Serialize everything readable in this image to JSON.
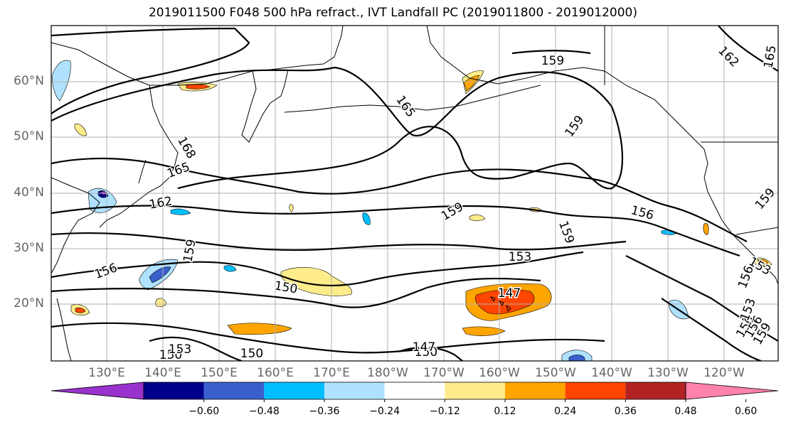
{
  "title": "2019011500 F048 500 hPa refract., IVT Landfall PC (2019011800 - 2019012000)",
  "axes": {
    "lat_labels": [
      "60°N",
      "50°N",
      "40°N",
      "30°N",
      "20°N"
    ],
    "lon_labels": [
      "130°E",
      "140°E",
      "150°E",
      "160°E",
      "170°E",
      "180°W",
      "170°W",
      "160°W",
      "150°W",
      "140°W",
      "130°W",
      "120°W"
    ],
    "grid": true
  },
  "colorbar": {
    "colors": [
      "#9932cc",
      "#00008b",
      "#3a5fcd",
      "#00bfff",
      "#b0e2ff",
      "#ffffff",
      "#ffec8b",
      "#ffa500",
      "#ff4500",
      "#b22222",
      "#ff82ab"
    ],
    "tick_labels": [
      "−0.60",
      "−0.48",
      "−0.36",
      "−0.24",
      "−0.12",
      "0.12",
      "0.24",
      "0.36",
      "0.48",
      "0.60"
    ]
  },
  "contour_labels": [
    "159",
    "165",
    "159",
    "162",
    "165",
    "168",
    "165",
    "162",
    "159",
    "156",
    "153",
    "159",
    "156",
    "150",
    "153",
    "159",
    "147",
    "150",
    "147",
    "150",
    "150",
    "153",
    "156",
    "159",
    "156",
    "153",
    "156",
    "159"
  ]
}
